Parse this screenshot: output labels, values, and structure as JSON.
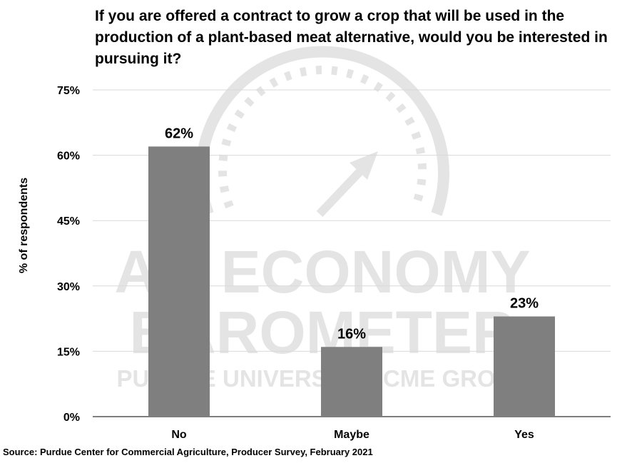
{
  "chart_data": {
    "type": "bar",
    "title": "If you are offered a contract to grow a crop that will be used in the production of a plant-based meat alternative, would you be interested in pursuing it?",
    "categories": [
      "No",
      "Maybe",
      "Yes"
    ],
    "values": [
      62,
      16,
      23
    ],
    "value_labels": [
      "62%",
      "16%",
      "23%"
    ],
    "ylabel": "% of respondents",
    "xlabel": "",
    "ylim": [
      0,
      75
    ],
    "yticks": [
      0,
      15,
      30,
      45,
      60,
      75
    ],
    "ytick_labels": [
      "0%",
      "15%",
      "30%",
      "45%",
      "60%",
      "75%"
    ],
    "grid": true,
    "bar_color": "#7f7f7f",
    "source": "Source: Purdue Center for Commercial Agriculture, Producer Survey, February 2021"
  },
  "watermark": {
    "line1": "AG ECONOMY",
    "line2": "BAROMETER",
    "line3": "PURDUE UNIVERSITY | CME GROUP",
    "color": "#cfcfcf"
  }
}
